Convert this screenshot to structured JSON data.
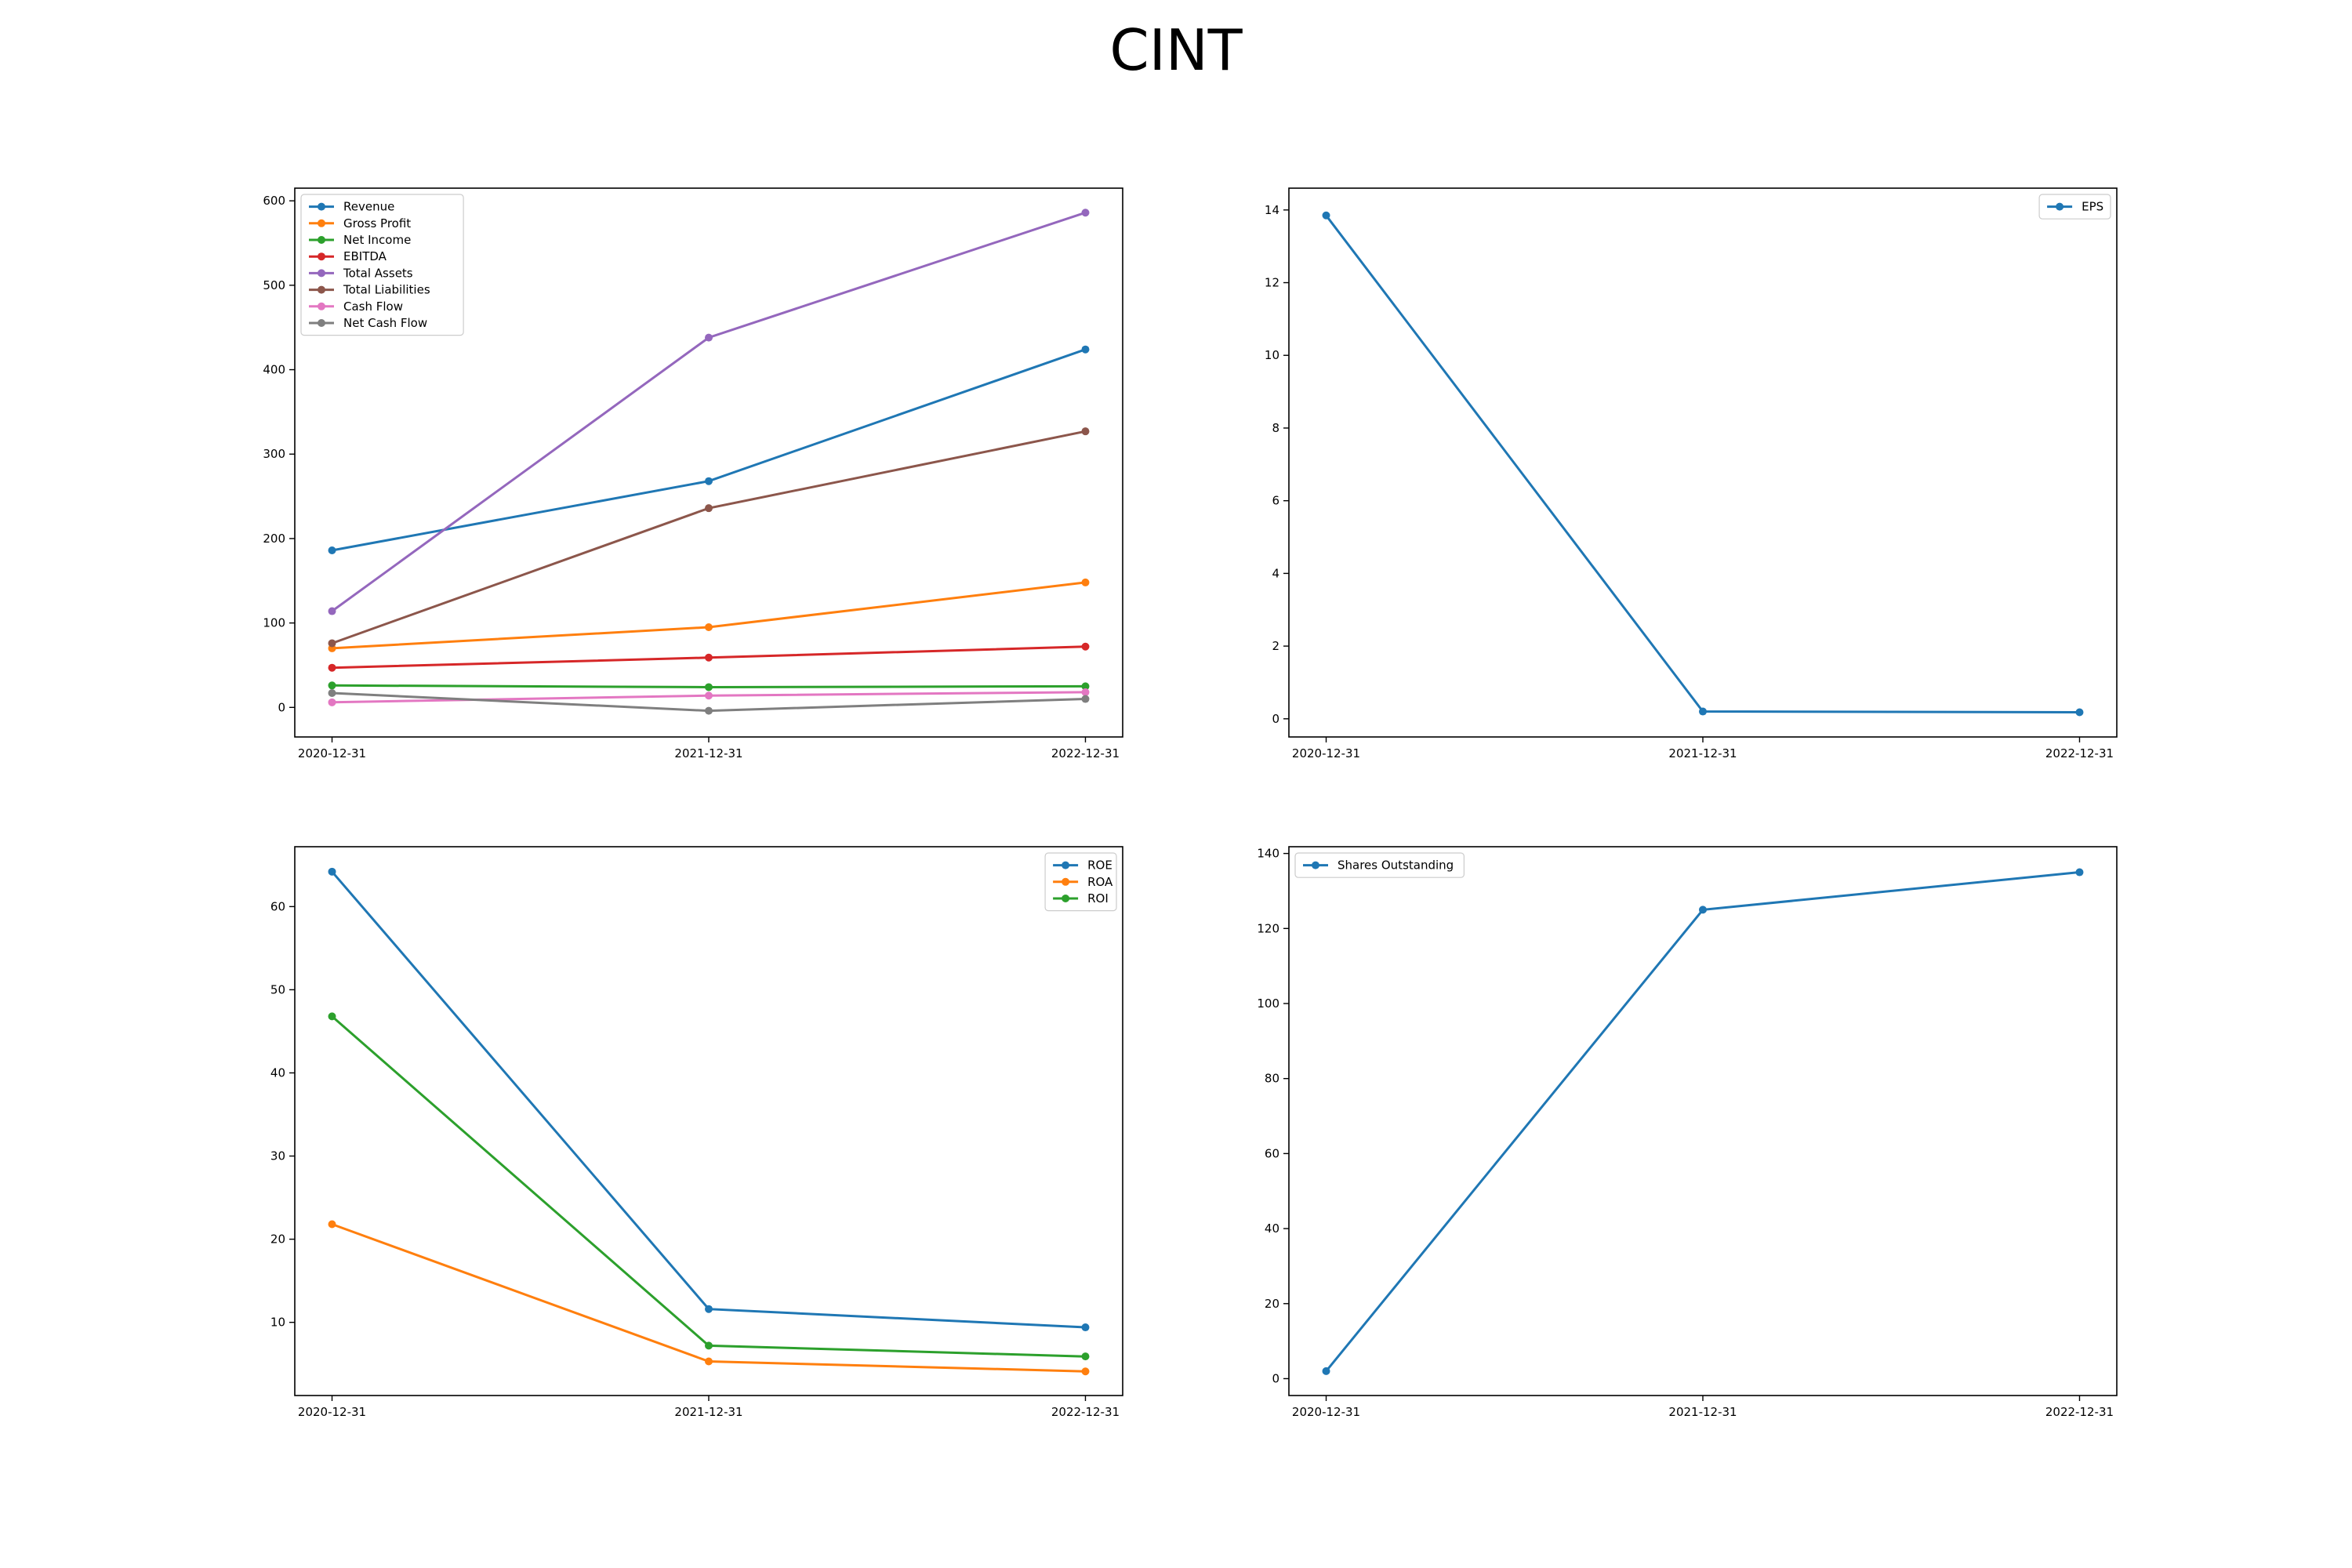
{
  "title": "CINT",
  "chart_data": [
    {
      "type": "line",
      "title": "",
      "xlabel": "",
      "ylabel": "",
      "categories": [
        "2020-12-31",
        "2021-12-31",
        "2022-12-31"
      ],
      "ylim": [
        -35,
        615
      ],
      "yticks": [
        0,
        100,
        200,
        300,
        400,
        500,
        600
      ],
      "legend_position": "top-left",
      "grid": false,
      "series": [
        {
          "name": "Revenue",
          "color": "#1f77b4",
          "values": [
            186,
            268,
            424
          ]
        },
        {
          "name": "Gross Profit",
          "color": "#ff7f0e",
          "values": [
            70,
            95,
            148
          ]
        },
        {
          "name": "Net Income",
          "color": "#2ca02c",
          "values": [
            26,
            24,
            25
          ]
        },
        {
          "name": "EBITDA",
          "color": "#d62728",
          "values": [
            47,
            59,
            72
          ]
        },
        {
          "name": "Total Assets",
          "color": "#9467bd",
          "values": [
            114,
            438,
            586
          ]
        },
        {
          "name": "Total Liabilities",
          "color": "#8c564b",
          "values": [
            76,
            236,
            327
          ]
        },
        {
          "name": "Cash Flow",
          "color": "#e377c2",
          "values": [
            6,
            14,
            18
          ]
        },
        {
          "name": "Net Cash Flow",
          "color": "#7f7f7f",
          "values": [
            17,
            -4,
            10
          ]
        }
      ]
    },
    {
      "type": "line",
      "title": "",
      "xlabel": "",
      "ylabel": "",
      "categories": [
        "2020-12-31",
        "2021-12-31",
        "2022-12-31"
      ],
      "ylim": [
        -0.5,
        14.6
      ],
      "yticks": [
        0,
        2,
        4,
        6,
        8,
        10,
        12,
        14
      ],
      "legend_position": "top-right",
      "grid": false,
      "series": [
        {
          "name": "EPS",
          "color": "#1f77b4",
          "values": [
            13.85,
            0.2,
            0.18
          ]
        }
      ]
    },
    {
      "type": "line",
      "title": "",
      "xlabel": "",
      "ylabel": "",
      "categories": [
        "2020-12-31",
        "2021-12-31",
        "2022-12-31"
      ],
      "ylim": [
        1.2,
        67.2
      ],
      "yticks": [
        10,
        20,
        30,
        40,
        50,
        60
      ],
      "legend_position": "top-right",
      "grid": false,
      "series": [
        {
          "name": "ROE",
          "color": "#1f77b4",
          "values": [
            64.2,
            11.6,
            9.4
          ]
        },
        {
          "name": "ROA",
          "color": "#ff7f0e",
          "values": [
            21.8,
            5.3,
            4.1
          ]
        },
        {
          "name": "ROI",
          "color": "#2ca02c",
          "values": [
            46.8,
            7.2,
            5.9
          ]
        }
      ]
    },
    {
      "type": "line",
      "title": "",
      "xlabel": "",
      "ylabel": "",
      "categories": [
        "2020-12-31",
        "2021-12-31",
        "2022-12-31"
      ],
      "ylim": [
        -4.5,
        141.8
      ],
      "yticks": [
        0,
        20,
        40,
        60,
        80,
        100,
        120,
        140
      ],
      "legend_position": "top-left",
      "grid": false,
      "series": [
        {
          "name": "Shares Outstanding",
          "color": "#1f77b4",
          "values": [
            2,
            125,
            135
          ]
        }
      ]
    }
  ]
}
